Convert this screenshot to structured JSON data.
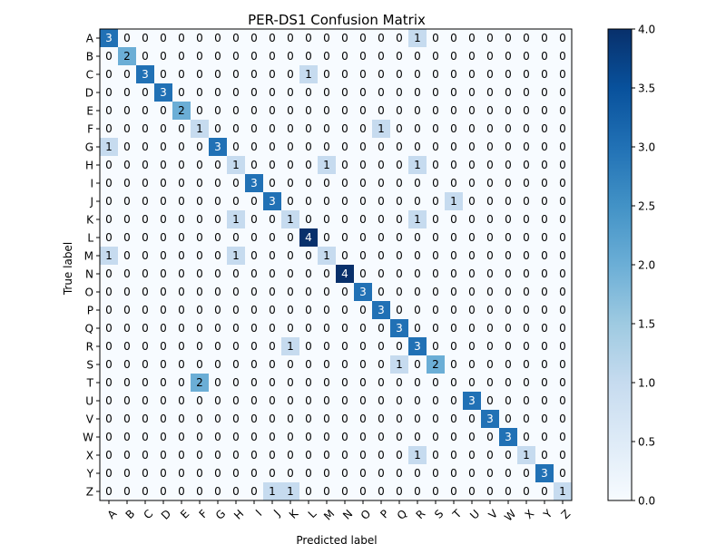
{
  "chart_data": {
    "type": "heatmap",
    "title": "PER-DS1 Confusion Matrix",
    "xlabel": "Predicted label",
    "ylabel": "True label",
    "x_categories": [
      "A",
      "B",
      "C",
      "D",
      "E",
      "F",
      "G",
      "H",
      "I",
      "J",
      "K",
      "L",
      "M",
      "N",
      "O",
      "P",
      "Q",
      "R",
      "S",
      "T",
      "U",
      "V",
      "W",
      "X",
      "Y",
      "Z"
    ],
    "y_categories": [
      "A",
      "B",
      "C",
      "D",
      "E",
      "F",
      "G",
      "H",
      "I",
      "J",
      "K",
      "L",
      "M",
      "N",
      "O",
      "P",
      "Q",
      "R",
      "S",
      "T",
      "U",
      "V",
      "W",
      "X",
      "Y",
      "Z"
    ],
    "values": [
      [
        3,
        0,
        0,
        0,
        0,
        0,
        0,
        0,
        0,
        0,
        0,
        0,
        0,
        0,
        0,
        0,
        0,
        1,
        0,
        0,
        0,
        0,
        0,
        0,
        0,
        0
      ],
      [
        0,
        2,
        0,
        0,
        0,
        0,
        0,
        0,
        0,
        0,
        0,
        0,
        0,
        0,
        0,
        0,
        0,
        0,
        0,
        0,
        0,
        0,
        0,
        0,
        0,
        0
      ],
      [
        0,
        0,
        3,
        0,
        0,
        0,
        0,
        0,
        0,
        0,
        0,
        1,
        0,
        0,
        0,
        0,
        0,
        0,
        0,
        0,
        0,
        0,
        0,
        0,
        0,
        0
      ],
      [
        0,
        0,
        0,
        3,
        0,
        0,
        0,
        0,
        0,
        0,
        0,
        0,
        0,
        0,
        0,
        0,
        0,
        0,
        0,
        0,
        0,
        0,
        0,
        0,
        0,
        0
      ],
      [
        0,
        0,
        0,
        0,
        2,
        0,
        0,
        0,
        0,
        0,
        0,
        0,
        0,
        0,
        0,
        0,
        0,
        0,
        0,
        0,
        0,
        0,
        0,
        0,
        0,
        0
      ],
      [
        0,
        0,
        0,
        0,
        0,
        1,
        0,
        0,
        0,
        0,
        0,
        0,
        0,
        0,
        0,
        1,
        0,
        0,
        0,
        0,
        0,
        0,
        0,
        0,
        0,
        0
      ],
      [
        1,
        0,
        0,
        0,
        0,
        0,
        3,
        0,
        0,
        0,
        0,
        0,
        0,
        0,
        0,
        0,
        0,
        0,
        0,
        0,
        0,
        0,
        0,
        0,
        0,
        0
      ],
      [
        0,
        0,
        0,
        0,
        0,
        0,
        0,
        1,
        0,
        0,
        0,
        0,
        1,
        0,
        0,
        0,
        0,
        1,
        0,
        0,
        0,
        0,
        0,
        0,
        0,
        0
      ],
      [
        0,
        0,
        0,
        0,
        0,
        0,
        0,
        0,
        3,
        0,
        0,
        0,
        0,
        0,
        0,
        0,
        0,
        0,
        0,
        0,
        0,
        0,
        0,
        0,
        0,
        0
      ],
      [
        0,
        0,
        0,
        0,
        0,
        0,
        0,
        0,
        0,
        3,
        0,
        0,
        0,
        0,
        0,
        0,
        0,
        0,
        0,
        1,
        0,
        0,
        0,
        0,
        0,
        0
      ],
      [
        0,
        0,
        0,
        0,
        0,
        0,
        0,
        1,
        0,
        0,
        1,
        0,
        0,
        0,
        0,
        0,
        0,
        1,
        0,
        0,
        0,
        0,
        0,
        0,
        0,
        0
      ],
      [
        0,
        0,
        0,
        0,
        0,
        0,
        0,
        0,
        0,
        0,
        0,
        4,
        0,
        0,
        0,
        0,
        0,
        0,
        0,
        0,
        0,
        0,
        0,
        0,
        0,
        0
      ],
      [
        1,
        0,
        0,
        0,
        0,
        0,
        0,
        1,
        0,
        0,
        0,
        0,
        1,
        0,
        0,
        0,
        0,
        0,
        0,
        0,
        0,
        0,
        0,
        0,
        0,
        0
      ],
      [
        0,
        0,
        0,
        0,
        0,
        0,
        0,
        0,
        0,
        0,
        0,
        0,
        0,
        4,
        0,
        0,
        0,
        0,
        0,
        0,
        0,
        0,
        0,
        0,
        0,
        0
      ],
      [
        0,
        0,
        0,
        0,
        0,
        0,
        0,
        0,
        0,
        0,
        0,
        0,
        0,
        0,
        3,
        0,
        0,
        0,
        0,
        0,
        0,
        0,
        0,
        0,
        0,
        0
      ],
      [
        0,
        0,
        0,
        0,
        0,
        0,
        0,
        0,
        0,
        0,
        0,
        0,
        0,
        0,
        0,
        3,
        0,
        0,
        0,
        0,
        0,
        0,
        0,
        0,
        0,
        0
      ],
      [
        0,
        0,
        0,
        0,
        0,
        0,
        0,
        0,
        0,
        0,
        0,
        0,
        0,
        0,
        0,
        0,
        3,
        0,
        0,
        0,
        0,
        0,
        0,
        0,
        0,
        0
      ],
      [
        0,
        0,
        0,
        0,
        0,
        0,
        0,
        0,
        0,
        0,
        1,
        0,
        0,
        0,
        0,
        0,
        0,
        3,
        0,
        0,
        0,
        0,
        0,
        0,
        0,
        0
      ],
      [
        0,
        0,
        0,
        0,
        0,
        0,
        0,
        0,
        0,
        0,
        0,
        0,
        0,
        0,
        0,
        0,
        1,
        0,
        2,
        0,
        0,
        0,
        0,
        0,
        0,
        0
      ],
      [
        0,
        0,
        0,
        0,
        0,
        2,
        0,
        0,
        0,
        0,
        0,
        0,
        0,
        0,
        0,
        0,
        0,
        0,
        0,
        0,
        0,
        0,
        0,
        0,
        0,
        0
      ],
      [
        0,
        0,
        0,
        0,
        0,
        0,
        0,
        0,
        0,
        0,
        0,
        0,
        0,
        0,
        0,
        0,
        0,
        0,
        0,
        0,
        3,
        0,
        0,
        0,
        0,
        0
      ],
      [
        0,
        0,
        0,
        0,
        0,
        0,
        0,
        0,
        0,
        0,
        0,
        0,
        0,
        0,
        0,
        0,
        0,
        0,
        0,
        0,
        0,
        3,
        0,
        0,
        0,
        0
      ],
      [
        0,
        0,
        0,
        0,
        0,
        0,
        0,
        0,
        0,
        0,
        0,
        0,
        0,
        0,
        0,
        0,
        0,
        0,
        0,
        0,
        0,
        0,
        3,
        0,
        0,
        0
      ],
      [
        0,
        0,
        0,
        0,
        0,
        0,
        0,
        0,
        0,
        0,
        0,
        0,
        0,
        0,
        0,
        0,
        0,
        1,
        0,
        0,
        0,
        0,
        0,
        1,
        0,
        0
      ],
      [
        0,
        0,
        0,
        0,
        0,
        0,
        0,
        0,
        0,
        0,
        0,
        0,
        0,
        0,
        0,
        0,
        0,
        0,
        0,
        0,
        0,
        0,
        0,
        0,
        3,
        0
      ],
      [
        0,
        0,
        0,
        0,
        0,
        0,
        0,
        0,
        0,
        1,
        1,
        0,
        0,
        0,
        0,
        0,
        0,
        0,
        0,
        0,
        0,
        0,
        0,
        0,
        0,
        1
      ]
    ],
    "vmin": 0,
    "vmax": 4,
    "colormap": "Blues",
    "colorbar_ticks": [
      "0.0",
      "0.5",
      "1.0",
      "1.5",
      "2.0",
      "2.5",
      "3.0",
      "3.5",
      "4.0"
    ],
    "grid": false,
    "legend": "colorbar-right"
  }
}
